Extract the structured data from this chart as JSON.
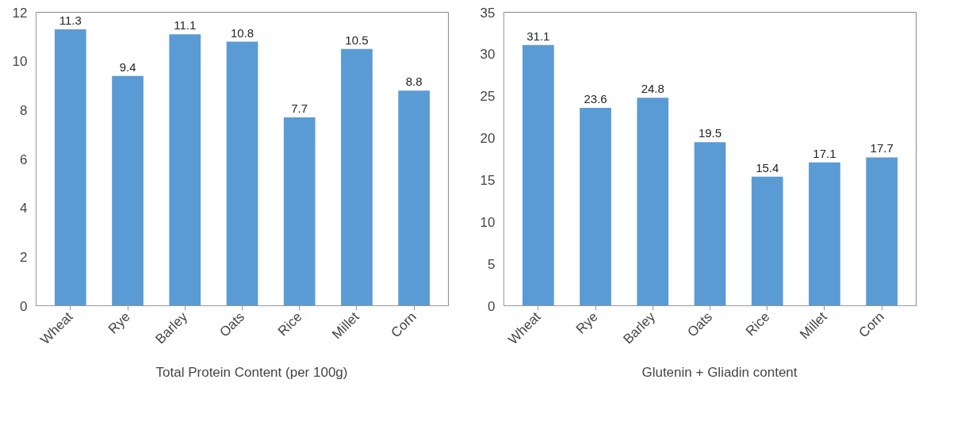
{
  "chart_data": [
    {
      "type": "bar",
      "categories": [
        "Wheat",
        "Rye",
        "Barley",
        "Oats",
        "Rice",
        "Millet",
        "Corn"
      ],
      "ylim": [
        0,
        12
      ],
      "yticks": [
        0,
        2,
        4,
        6,
        8,
        10,
        12
      ],
      "grid": false,
      "legend": "bottom",
      "data_labels": true,
      "series": [
        {
          "name": "Total Protein Content (per 100g)",
          "color": "#5b9bd5",
          "values": [
            11.3,
            9.4,
            11.1,
            10.8,
            7.7,
            10.5,
            8.8
          ]
        }
      ]
    },
    {
      "type": "bar",
      "categories": [
        "Wheat",
        "Rye",
        "Barley",
        "Oats",
        "Rice",
        "Millet",
        "Corn"
      ],
      "ylim": [
        0,
        35
      ],
      "yticks": [
        0,
        5,
        10,
        15,
        20,
        25,
        30,
        35
      ],
      "grid": false,
      "legend": "bottom",
      "data_labels": true,
      "series": [
        {
          "name": "Glutenin + Gliadin content",
          "color": "#5b9bd5",
          "values": [
            31.1,
            23.6,
            24.8,
            19.5,
            15.4,
            17.1,
            17.7
          ]
        }
      ]
    }
  ]
}
